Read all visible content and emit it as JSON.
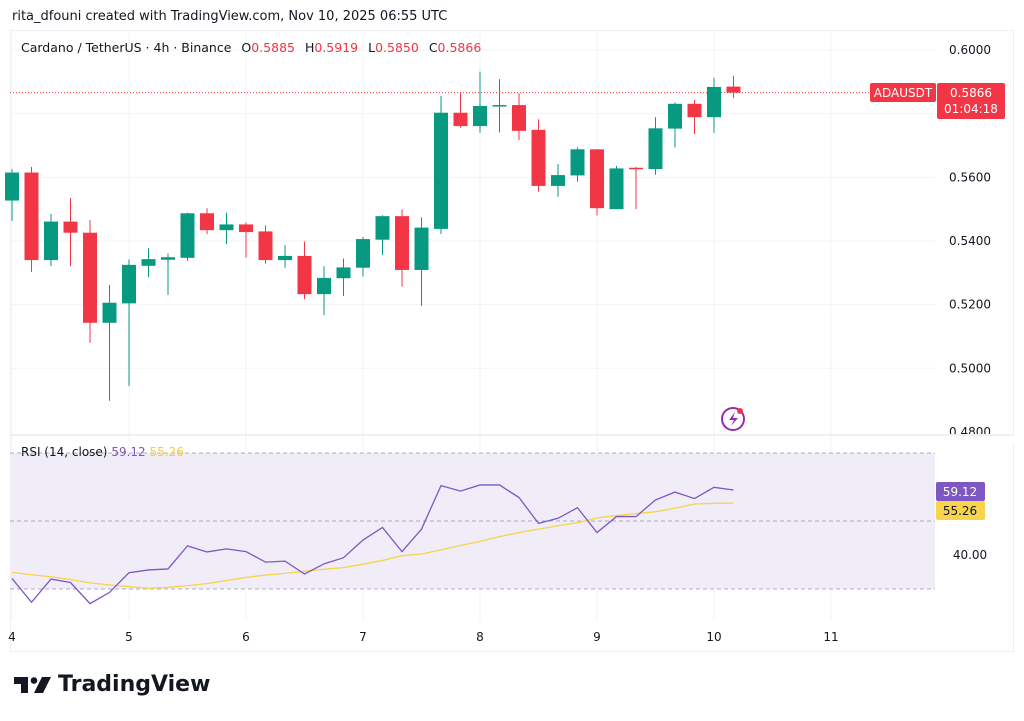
{
  "header": {
    "credit": "rita_dfouni created with TradingView.com, Nov 10, 2025 06:55 UTC"
  },
  "legend": {
    "symbol": "Cardano / TetherUS · 4h · Binance",
    "o_label": "O",
    "o": "0.5885",
    "h_label": "H",
    "h": "0.5919",
    "l_label": "L",
    "l": "0.5850",
    "c_label": "C",
    "c": "0.5866"
  },
  "price_tag": {
    "ticker": "ADAUSDT",
    "price": "0.5866",
    "countdown": "01:04:18"
  },
  "rsi_legend": {
    "label": "RSI (14, close)",
    "rsi": "59.12",
    "ma": "55.26"
  },
  "rsi_axis": {
    "labels": [
      "40.00"
    ],
    "rsi_tag": "59.12",
    "ma_tag": "55.26"
  },
  "footer": {
    "brand": "TradingView"
  },
  "icons": {
    "alert": "lightning-bolt-icon",
    "logo": "tradingview-logo-icon"
  },
  "colors": {
    "up": "#089981",
    "down": "#f23645",
    "rsi": "#7e57c2",
    "rsi_ma": "#f7d54a",
    "rsi_band": "#f0ecf8"
  },
  "chart_data": [
    {
      "type": "candlestick",
      "title": "Cardano / TetherUS · 4h · Binance",
      "x_tick_labels": [
        "4",
        "5",
        "6",
        "7",
        "8",
        "9",
        "10",
        "11"
      ],
      "y_tick_labels": [
        "0.6000",
        "0.5600",
        "0.5400",
        "0.5200",
        "0.5000",
        "0.4800"
      ],
      "ylim": [
        0.48,
        0.6
      ],
      "grid": true,
      "last_price": 0.5866,
      "open": [
        0.5527,
        0.5615,
        0.534,
        0.5461,
        0.5426,
        0.5143,
        0.5204,
        0.5322,
        0.5341,
        0.5347,
        0.5487,
        0.5434,
        0.5452,
        0.543,
        0.534,
        0.5353,
        0.5233,
        0.5283,
        0.5316,
        0.5404,
        0.5478,
        0.5309,
        0.5438,
        0.5803,
        0.5761,
        0.5826,
        0.5827,
        0.5749,
        0.5573,
        0.5606,
        0.5688,
        0.55,
        0.563,
        0.5626,
        0.5753,
        0.5831,
        0.5789,
        0.5885
      ],
      "high": [
        0.5626,
        0.5633,
        0.5485,
        0.5535,
        0.5466,
        0.5262,
        0.5342,
        0.5377,
        0.5361,
        0.5489,
        0.5503,
        0.5489,
        0.5458,
        0.5449,
        0.5387,
        0.5398,
        0.5321,
        0.5345,
        0.5413,
        0.5481,
        0.5499,
        0.5474,
        0.5855,
        0.5864,
        0.5932,
        0.5908,
        0.5864,
        0.5782,
        0.5642,
        0.5694,
        0.5688,
        0.5636,
        0.5633,
        0.5789,
        0.5835,
        0.5843,
        0.5913,
        0.5919
      ],
      "low": [
        0.5463,
        0.5303,
        0.5321,
        0.5321,
        0.508,
        0.4898,
        0.4944,
        0.5286,
        0.5231,
        0.5338,
        0.5421,
        0.539,
        0.5348,
        0.5329,
        0.5316,
        0.5217,
        0.5167,
        0.5227,
        0.5288,
        0.5356,
        0.5257,
        0.5196,
        0.5422,
        0.5756,
        0.574,
        0.5741,
        0.5717,
        0.5555,
        0.5539,
        0.5586,
        0.548,
        0.55,
        0.55,
        0.5608,
        0.5694,
        0.5736,
        0.574,
        0.585
      ],
      "close": [
        0.5615,
        0.534,
        0.5461,
        0.5426,
        0.5143,
        0.5206,
        0.5325,
        0.5343,
        0.5349,
        0.5487,
        0.5434,
        0.5452,
        0.5428,
        0.534,
        0.5353,
        0.5233,
        0.5284,
        0.5317,
        0.5406,
        0.5478,
        0.5309,
        0.5442,
        0.5803,
        0.5761,
        0.5824,
        0.5827,
        0.5746,
        0.5573,
        0.5607,
        0.5688,
        0.5503,
        0.5628,
        0.5627,
        0.5754,
        0.5831,
        0.5789,
        0.5884,
        0.5866
      ]
    },
    {
      "type": "line",
      "title": "RSI (14, close)",
      "ylim": [
        20,
        75
      ],
      "bands": [
        70,
        50,
        30
      ],
      "y_tick_labels": [
        "40.00"
      ],
      "series": [
        {
          "name": "RSI",
          "values": [
            33.1,
            26.1,
            32.9,
            31.9,
            25.7,
            29.0,
            34.8,
            35.6,
            35.9,
            42.7,
            40.9,
            41.8,
            41.0,
            37.9,
            38.2,
            34.4,
            37.4,
            39.2,
            44.4,
            48.1,
            41.0,
            47.6,
            60.4,
            58.8,
            60.6,
            60.6,
            56.9,
            49.3,
            50.8,
            53.9,
            46.6,
            51.3,
            51.3,
            56.2,
            58.5,
            56.6,
            59.9,
            59.12
          ]
        },
        {
          "name": "RSI-based MA",
          "values": [
            34.9,
            34.2,
            33.6,
            32.8,
            31.8,
            31.2,
            30.7,
            30.2,
            30.5,
            31.0,
            31.6,
            32.5,
            33.4,
            34.1,
            34.6,
            35.2,
            35.8,
            36.3,
            37.3,
            38.4,
            39.8,
            40.3,
            41.5,
            42.8,
            44.0,
            45.4,
            46.6,
            47.6,
            48.6,
            49.5,
            50.9,
            51.6,
            52.2,
            52.7,
            53.8,
            55.0,
            55.2,
            55.26
          ]
        }
      ]
    }
  ]
}
